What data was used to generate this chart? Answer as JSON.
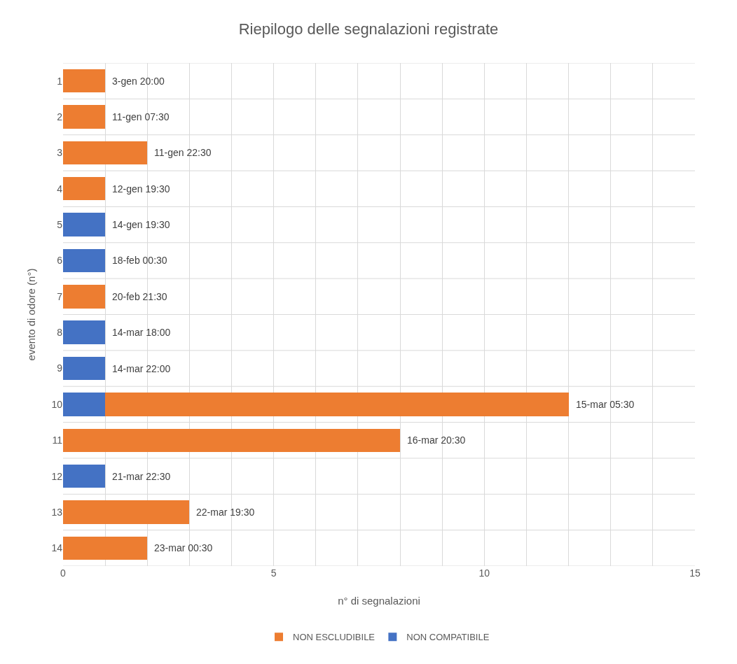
{
  "chart_data": {
    "type": "bar",
    "orientation": "horizontal",
    "stacked": true,
    "title": "Riepilogo delle segnalazioni registrate",
    "xlabel": "n° di segnalazioni",
    "ylabel": "evento di odore (n°)",
    "categories": [
      "1",
      "2",
      "3",
      "4",
      "5",
      "6",
      "7",
      "8",
      "9",
      "10",
      "11",
      "12",
      "13",
      "14"
    ],
    "series": [
      {
        "name": "NON COMPATIBILE",
        "color": "#4472c4",
        "values": [
          null,
          null,
          null,
          null,
          1,
          1,
          null,
          1,
          1,
          1,
          null,
          1,
          null,
          null
        ]
      },
      {
        "name": "NON ESCLUDIBILE",
        "color": "#ed7d31",
        "values": [
          1,
          1,
          2,
          1,
          null,
          null,
          1,
          null,
          null,
          11,
          8,
          null,
          3,
          2
        ]
      }
    ],
    "xlim": [
      0,
      15
    ],
    "xticks": [
      0,
      {
        "value": 1,
        "label": null
      },
      {
        "value": 2,
        "label": null
      },
      {
        "value": 3,
        "label": null
      },
      {
        "value": 4,
        "label": null
      },
      5,
      {
        "value": 6,
        "label": null
      },
      {
        "value": 7,
        "label": null
      },
      {
        "value": 8,
        "label": null
      },
      {
        "value": 9,
        "label": null
      },
      10,
      {
        "value": 11,
        "label": null
      },
      {
        "value": 12,
        "label": null
      },
      {
        "value": 13,
        "label": null
      },
      {
        "value": 14,
        "label": null
      },
      15
    ],
    "grid": true,
    "legend": "bottom",
    "annotations": [
      {
        "text": "3-gen 20:00",
        "x": 1,
        "y": "1"
      },
      {
        "text": "11-gen 07:30",
        "x": 1,
        "y": "2"
      },
      {
        "text": "11-gen 22:30",
        "x": 2,
        "y": "3"
      },
      {
        "text": "12-gen 19:30",
        "x": 1,
        "y": "4"
      },
      {
        "text": "14-gen 19:30",
        "x": 1,
        "y": "5"
      },
      {
        "text": "18-feb 00:30",
        "x": 1,
        "y": "6"
      },
      {
        "text": "20-feb 21:30",
        "x": 1,
        "y": "7"
      },
      {
        "text": "14-mar 18:00",
        "x": 1,
        "y": "8"
      },
      {
        "text": "14-mar 22:00",
        "x": 1,
        "y": "9"
      },
      {
        "text": "15-mar 05:30",
        "x": 12,
        "y": "10"
      },
      {
        "text": "16-mar 20:30",
        "x": 8,
        "y": "11"
      },
      {
        "text": "21-mar 22:30",
        "x": 1,
        "y": "12"
      },
      {
        "text": "22-mar 19:30",
        "x": 3,
        "y": "13"
      },
      {
        "text": "23-mar 00:30",
        "x": 2,
        "y": "14"
      }
    ]
  }
}
